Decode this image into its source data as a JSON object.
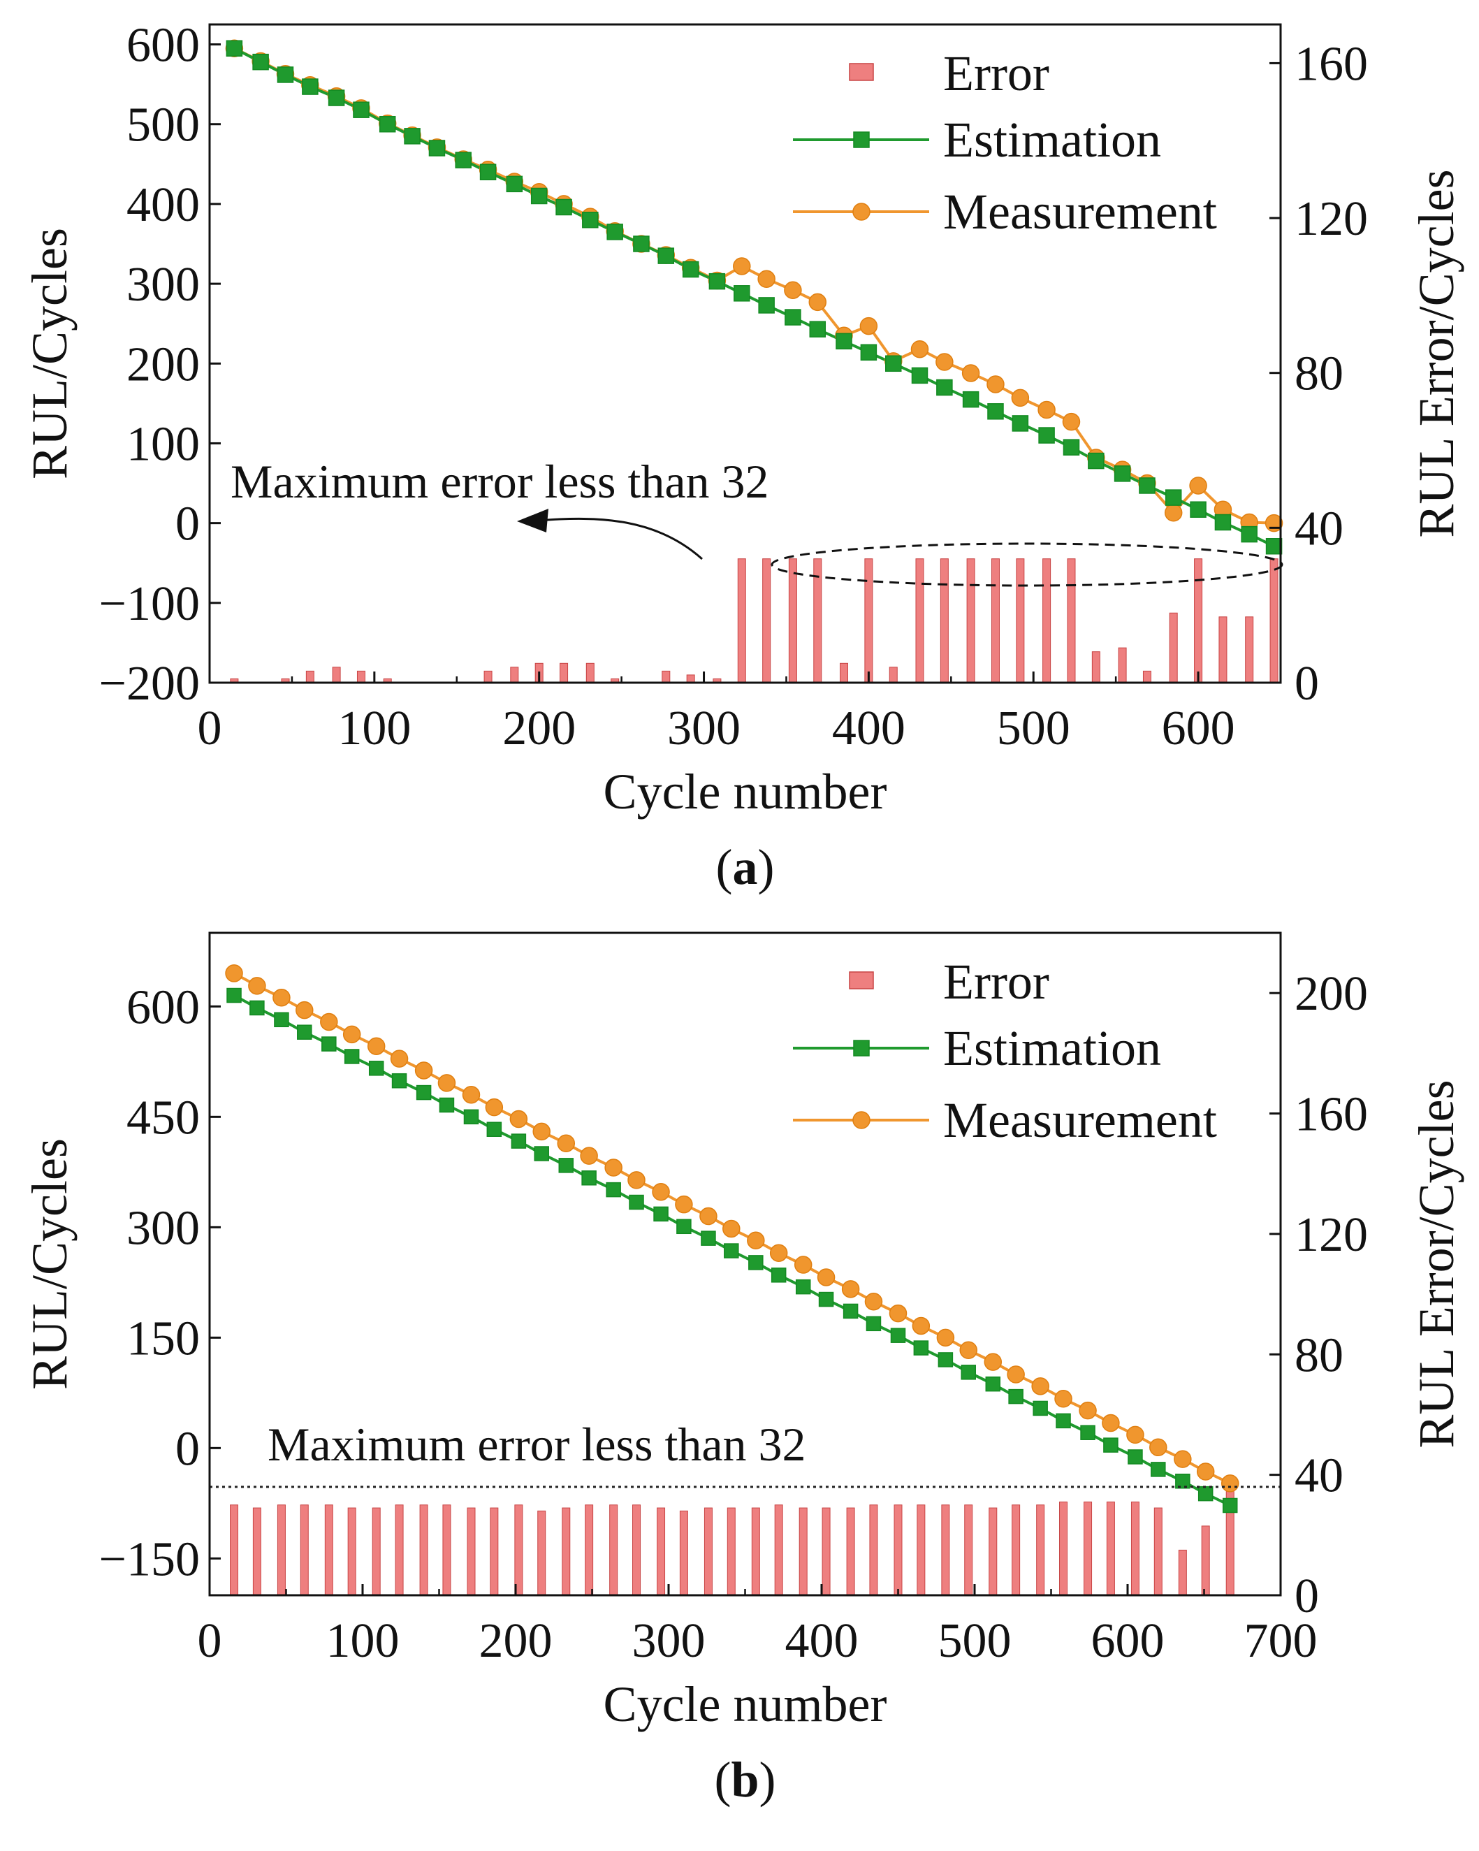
{
  "chart_data": [
    {
      "panel": "(a)",
      "panel_letter": "a",
      "type": "line+bar",
      "xlabel": "Cycle number",
      "ylabel_left": "RUL/Cycles",
      "ylabel_right": "RUL Error/Cycles",
      "xlim": [
        0,
        650
      ],
      "ylim_left": [
        -200,
        625
      ],
      "ylim_right": [
        0,
        170
      ],
      "xticks": [
        0,
        100,
        200,
        300,
        400,
        500,
        600
      ],
      "yticks_left": [
        -200,
        -100,
        0,
        100,
        200,
        300,
        400,
        500,
        600
      ],
      "yticks_left_labels": [
        "−200",
        "−100",
        "0",
        "100",
        "200",
        "300",
        "400",
        "500",
        "600"
      ],
      "yticks_right": [
        0,
        40,
        80,
        120,
        160
      ],
      "legend": [
        "Error",
        "Estimation",
        "Measurement"
      ],
      "annotation": "Maximum error less than 32",
      "x": [
        15,
        31,
        46,
        61,
        77,
        92,
        108,
        123,
        138,
        154,
        169,
        185,
        200,
        215,
        231,
        246,
        262,
        277,
        292,
        308,
        323,
        338,
        354,
        369,
        385,
        400,
        415,
        431,
        446,
        462,
        477,
        492,
        508,
        523,
        538,
        554,
        569,
        585,
        600,
        615,
        631,
        646
      ],
      "series": [
        {
          "name": "Estimation",
          "values": [
            595,
            578,
            562,
            547,
            533,
            518,
            500,
            485,
            470,
            455,
            440,
            425,
            410,
            396,
            380,
            365,
            350,
            335,
            318,
            303,
            288,
            273,
            258,
            243,
            228,
            214,
            200,
            185,
            170,
            155,
            140,
            125,
            110,
            95,
            78,
            62,
            47,
            32,
            17,
            1,
            -14,
            -29
          ]
        },
        {
          "name": "Measurement",
          "values": [
            595,
            579,
            563,
            549,
            535,
            520,
            501,
            486,
            471,
            456,
            443,
            428,
            415,
            400,
            384,
            366,
            350,
            336,
            320,
            304,
            322,
            306,
            292,
            277,
            235,
            247,
            203,
            218,
            202,
            188,
            174,
            157,
            142,
            127,
            82,
            67,
            50,
            13,
            47,
            17,
            1,
            0
          ]
        },
        {
          "name": "Error",
          "values": [
            1,
            0,
            1,
            3,
            4,
            3,
            1,
            0,
            0,
            0,
            3,
            4,
            5,
            5,
            5,
            1,
            0,
            3,
            2,
            1,
            32,
            32,
            32,
            32,
            5,
            32,
            4,
            32,
            32,
            32,
            32,
            32,
            32,
            32,
            8,
            9,
            3,
            18,
            32,
            17,
            17,
            32
          ]
        }
      ]
    },
    {
      "panel": "(b)",
      "panel_letter": "b",
      "type": "line+bar",
      "xlabel": "Cycle number",
      "ylabel_left": "RUL/Cycles",
      "ylabel_right": "RUL Error/Cycles",
      "xlim": [
        0,
        700
      ],
      "ylim_left": [
        -200,
        700
      ],
      "ylim_right": [
        0,
        220
      ],
      "xticks": [
        0,
        100,
        200,
        300,
        400,
        500,
        600,
        700
      ],
      "yticks_left": [
        -150,
        0,
        150,
        300,
        450,
        600
      ],
      "yticks_left_labels": [
        "−150",
        "0",
        "150",
        "300",
        "450",
        "600"
      ],
      "yticks_right": [
        0,
        40,
        80,
        120,
        160,
        200
      ],
      "legend": [
        "Error",
        "Estimation",
        "Measurement"
      ],
      "annotation": "Maximum error less than 32",
      "threshold_right": 36,
      "x": [
        16,
        31,
        47,
        62,
        78,
        93,
        109,
        124,
        140,
        155,
        171,
        186,
        202,
        217,
        233,
        248,
        264,
        279,
        295,
        310,
        326,
        341,
        357,
        372,
        388,
        403,
        419,
        434,
        450,
        465,
        481,
        496,
        512,
        527,
        543,
        558,
        574,
        589,
        605,
        620,
        636,
        651,
        667
      ],
      "series": [
        {
          "name": "Estimation",
          "values": [
            615,
            598,
            582,
            565,
            549,
            532,
            516,
            499,
            483,
            466,
            450,
            433,
            417,
            400,
            384,
            367,
            351,
            334,
            318,
            301,
            285,
            268,
            252,
            235,
            219,
            202,
            186,
            169,
            153,
            136,
            120,
            103,
            87,
            70,
            54,
            37,
            21,
            4,
            -12,
            -29,
            -45,
            -62,
            -78
          ]
        },
        {
          "name": "Measurement",
          "values": [
            645,
            628,
            612,
            595,
            579,
            562,
            546,
            529,
            513,
            496,
            480,
            463,
            447,
            430,
            414,
            397,
            381,
            364,
            348,
            331,
            315,
            298,
            282,
            265,
            249,
            232,
            216,
            199,
            183,
            166,
            150,
            133,
            117,
            100,
            84,
            67,
            51,
            34,
            18,
            1,
            -15,
            -32,
            -48
          ]
        },
        {
          "name": "Error",
          "values": [
            30,
            29,
            30,
            30,
            30,
            29,
            29,
            30,
            30,
            30,
            29,
            29,
            30,
            28,
            29,
            30,
            30,
            30,
            29,
            28,
            29,
            29,
            29,
            30,
            29,
            29,
            29,
            30,
            30,
            30,
            30,
            30,
            29,
            30,
            30,
            31,
            31,
            31,
            31,
            29,
            15,
            23,
            36
          ]
        }
      ]
    }
  ]
}
